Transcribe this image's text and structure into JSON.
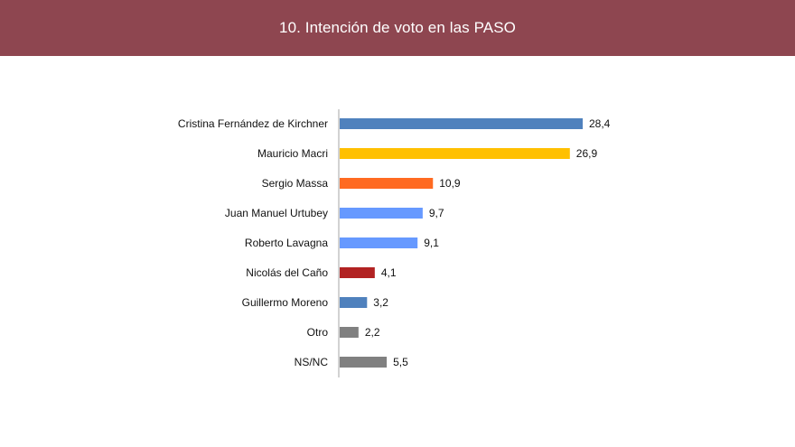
{
  "header": {
    "title": "10. Intención de voto en las PASO"
  },
  "chart_data": {
    "type": "bar",
    "orientation": "horizontal",
    "categories": [
      "Cristina Fernández de Kirchner",
      "Mauricio Macri",
      "Sergio Massa",
      "Juan Manuel Urtubey",
      "Roberto Lavagna",
      "Nicolás del Caño",
      "Guillermo Moreno",
      "Otro",
      "NS/NC"
    ],
    "values": [
      28.4,
      26.9,
      10.9,
      9.7,
      9.1,
      4.1,
      3.2,
      2.2,
      5.5
    ],
    "value_labels": [
      "28,4",
      "26,9",
      "10,9",
      "9,7",
      "9,1",
      "4,1",
      "3,2",
      "2,2",
      "5,5"
    ],
    "colors": [
      "#4f81bd",
      "#ffc000",
      "#ff6a21",
      "#6699ff",
      "#6699ff",
      "#b22222",
      "#4f81bd",
      "#808080",
      "#808080"
    ],
    "xlim": [
      0,
      30
    ],
    "grid": false,
    "legend": "none"
  }
}
